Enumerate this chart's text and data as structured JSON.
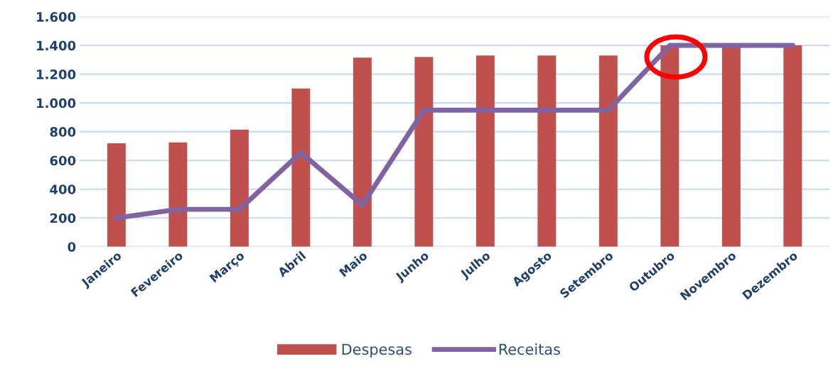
{
  "chart_data": {
    "type": "bar",
    "categories": [
      "Janeiro",
      "Fevereiro",
      "Março",
      "Abril",
      "Maio",
      "Junho",
      "Julho",
      "Agosto",
      "Setembro",
      "Outubro",
      "Novembro",
      "Dezembro"
    ],
    "series": [
      {
        "name": "Despesas",
        "color": "#c0504d",
        "values": [
          720,
          725,
          815,
          1100,
          1315,
          1320,
          1330,
          1330,
          1330,
          1400,
          1400,
          1400
        ]
      },
      {
        "name": "Receitas",
        "type": "line",
        "color": "#8064a2",
        "values": [
          200,
          260,
          260,
          655,
          290,
          950,
          950,
          950,
          950,
          1400,
          1400,
          1400
        ]
      }
    ],
    "ylim": [
      0,
      1600
    ],
    "yticks": [
      0,
      200,
      400,
      600,
      800,
      {
        "value": 1000,
        "label": "1.000"
      },
      {
        "value": 1200,
        "label": "1.200"
      },
      {
        "value": 1400,
        "label": "1.400"
      },
      {
        "value": 1600,
        "label": "1.600"
      }
    ],
    "grid": "y",
    "legend": "bottom",
    "marker": "none",
    "line_style": "solid"
  }
}
